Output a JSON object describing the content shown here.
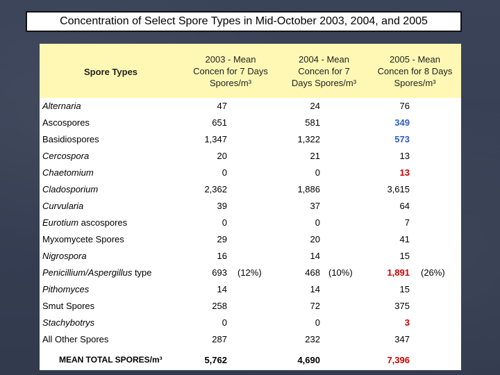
{
  "title": "Concentration of Select Spore Types in Mid-October 2003, 2004, and 2005",
  "headers": [
    "Spore Types",
    {
      "l1": "2003 - Mean",
      "l2": "Concen for 7 Days",
      "l3": "Spores/m³"
    },
    {
      "l1": "2004 - Mean",
      "l2": "Concen for 7",
      "l3": "Days Spores/m³"
    },
    {
      "l1": "2005 - Mean",
      "l2": "Concen for 8 Days",
      "l3": "Spores/m³"
    }
  ],
  "rows": [
    {
      "name": "Alternaria",
      "italic": true,
      "v2003": "47",
      "v2004": "24",
      "v2005": "76",
      "style2005": ""
    },
    {
      "name": "Ascospores",
      "italic": false,
      "v2003": "651",
      "v2004": "581",
      "v2005": "349",
      "style2005": "blue"
    },
    {
      "name": "Basidiospores",
      "italic": false,
      "v2003": "1,347",
      "v2004": "1,322",
      "v2005": "573",
      "style2005": "blue"
    },
    {
      "name": "Cercospora",
      "italic": true,
      "v2003": "20",
      "v2004": "21",
      "v2005": "13",
      "style2005": ""
    },
    {
      "name": "Chaetomium",
      "italic": true,
      "v2003": "0",
      "v2004": "0",
      "v2005": "13",
      "style2005": "red"
    },
    {
      "name": "Cladosporium",
      "italic": true,
      "v2003": "2,362",
      "v2004": "1,886",
      "v2005": "3,615",
      "style2005": ""
    },
    {
      "name": "Curvularia",
      "italic": true,
      "v2003": "39",
      "v2004": "37",
      "v2005": "64",
      "style2005": ""
    },
    {
      "name": "Eurotium",
      "nameSuffix": " ascospores",
      "italic": true,
      "v2003": "0",
      "v2004": "0",
      "v2005": "7",
      "style2005": ""
    },
    {
      "name": "Myxomycete Spores",
      "italic": false,
      "v2003": "29",
      "v2004": "20",
      "v2005": "41",
      "style2005": ""
    },
    {
      "name": "Nigrospora",
      "italic": true,
      "v2003": "16",
      "v2004": "14",
      "v2005": "15",
      "style2005": ""
    },
    {
      "name": "Penicillium/Aspergillus",
      "nameSuffix": " type",
      "italic": true,
      "v2003": "693",
      "p2003": "(12%)",
      "v2004": "468",
      "p2004": "(10%)",
      "v2005": "1,891",
      "p2005": "(26%)",
      "style2005": "red"
    },
    {
      "name": "Pithomyces",
      "italic": true,
      "v2003": "14",
      "v2004": "14",
      "v2005": "15",
      "style2005": ""
    },
    {
      "name": "Smut Spores",
      "italic": false,
      "v2003": "258",
      "v2004": "72",
      "v2005": "375",
      "style2005": ""
    },
    {
      "name": "Stachybotrys",
      "italic": true,
      "v2003": "0",
      "v2004": "0",
      "v2005": "3",
      "style2005": "red"
    },
    {
      "name": "All Other Spores",
      "italic": false,
      "v2003": "287",
      "v2004": "232",
      "v2005": "347",
      "style2005": ""
    }
  ],
  "total": {
    "label": "MEAN TOTAL SPORES/m³",
    "v2003": "5,762",
    "v2004": "4,690",
    "v2005": "7,396"
  },
  "colors": {
    "header_bg": "#fff8b4",
    "blue_value": "#2f5cc0",
    "red_value": "#d00000",
    "slide_bg": "#353d52"
  }
}
